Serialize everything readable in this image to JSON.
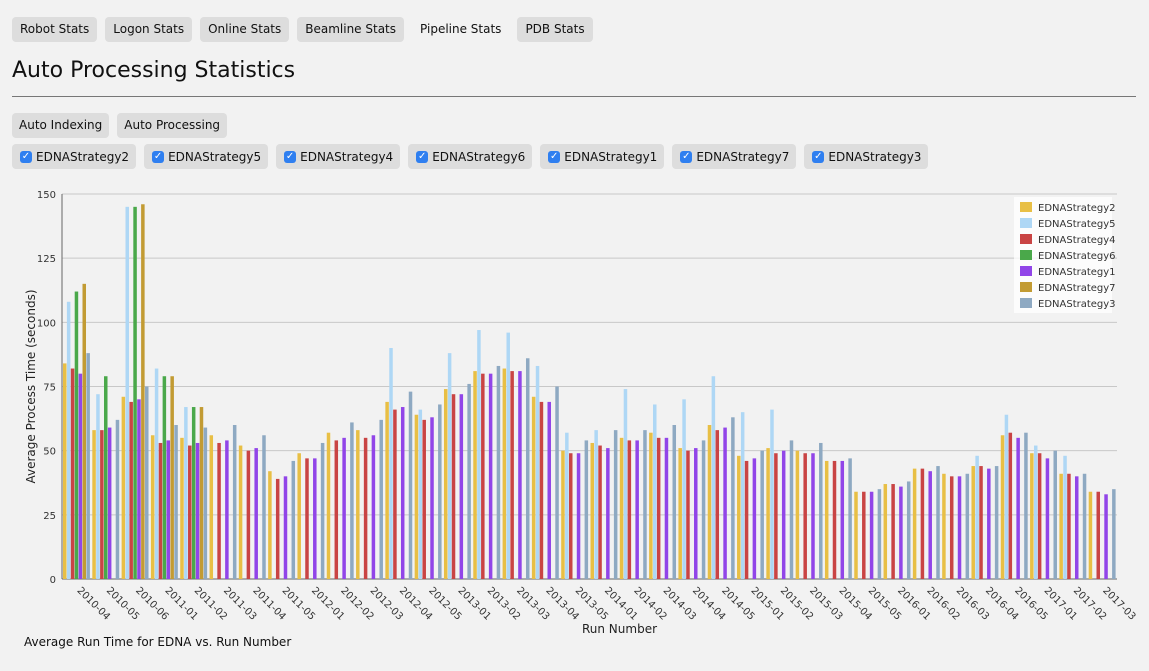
{
  "nav": {
    "tabs": [
      {
        "label": "Robot Stats",
        "active": false
      },
      {
        "label": "Logon Stats",
        "active": false
      },
      {
        "label": "Online Stats",
        "active": false
      },
      {
        "label": "Beamline Stats",
        "active": false
      },
      {
        "label": "Pipeline Stats",
        "active": true
      },
      {
        "label": "PDB Stats",
        "active": false
      }
    ]
  },
  "page_title": "Auto Processing Statistics",
  "subtabs": [
    "Auto Indexing",
    "Auto Processing"
  ],
  "series_toggles": [
    {
      "label": "EDNAStrategy2",
      "checked": true
    },
    {
      "label": "EDNAStrategy5",
      "checked": true
    },
    {
      "label": "EDNAStrategy4",
      "checked": true
    },
    {
      "label": "EDNAStrategy6",
      "checked": true
    },
    {
      "label": "EDNAStrategy1",
      "checked": true
    },
    {
      "label": "EDNAStrategy7",
      "checked": true
    },
    {
      "label": "EDNAStrategy3",
      "checked": true
    }
  ],
  "caption": "Average Run Time for EDNA vs. Run Number",
  "chart_data": {
    "type": "bar",
    "xlabel": "Run Number",
    "ylabel": "Average Process Time (seconds)",
    "ylim": [
      0,
      150
    ],
    "yticks": [
      0,
      25,
      50,
      75,
      100,
      125,
      150
    ],
    "grid": true,
    "legend_position": "top-right",
    "categories": [
      "2010-04",
      "2010-05",
      "2010-06",
      "2011-01",
      "2011-02",
      "2011-03",
      "2011-04",
      "2011-05",
      "2012-01",
      "2012-02",
      "2012-03",
      "2012-04",
      "2012-05",
      "2013-01",
      "2013-02",
      "2013-03",
      "2013-04",
      "2013-05",
      "2014-01",
      "2014-02",
      "2014-03",
      "2014-04",
      "2014-05",
      "2015-01",
      "2015-02",
      "2015-03",
      "2015-04",
      "2015-05",
      "2016-01",
      "2016-02",
      "2016-03",
      "2016-04",
      "2016-05",
      "2017-01",
      "2017-02",
      "2017-03"
    ],
    "series": [
      {
        "name": "EDNAStrategy2",
        "color": "#e8bf45",
        "values": [
          84,
          58,
          71,
          56,
          55,
          56,
          52,
          42,
          49,
          57,
          58,
          69,
          64,
          74,
          81,
          82,
          71,
          50,
          53,
          55,
          57,
          51,
          60,
          48,
          51,
          50,
          46,
          34,
          37,
          43,
          41,
          44,
          56,
          49,
          41,
          34
        ]
      },
      {
        "name": "EDNAStrategy5",
        "color": "#aed7f5",
        "values": [
          108,
          72,
          145,
          82,
          67,
          null,
          null,
          null,
          null,
          null,
          null,
          90,
          66,
          88,
          97,
          96,
          83,
          57,
          58,
          74,
          68,
          70,
          79,
          65,
          66,
          null,
          null,
          null,
          null,
          null,
          null,
          48,
          64,
          52,
          48,
          null
        ]
      },
      {
        "name": "EDNAStrategy4",
        "color": "#c94444",
        "values": [
          82,
          58,
          69,
          53,
          52,
          53,
          50,
          39,
          47,
          54,
          55,
          66,
          62,
          72,
          80,
          81,
          69,
          49,
          52,
          54,
          55,
          50,
          58,
          46,
          49,
          49,
          46,
          34,
          37,
          43,
          40,
          44,
          57,
          49,
          41,
          34
        ]
      },
      {
        "name": "EDNAStrategy6",
        "color": "#4aa84a",
        "values": [
          112,
          79,
          145,
          79,
          67,
          null,
          null,
          null,
          null,
          null,
          null,
          null,
          null,
          null,
          null,
          null,
          null,
          null,
          null,
          null,
          null,
          null,
          null,
          null,
          null,
          null,
          null,
          null,
          null,
          null,
          null,
          null,
          null,
          null,
          null,
          null
        ]
      },
      {
        "name": "EDNAStrategy1",
        "color": "#9145e8",
        "values": [
          80,
          59,
          70,
          54,
          53,
          54,
          51,
          40,
          47,
          55,
          56,
          67,
          63,
          72,
          80,
          81,
          69,
          49,
          51,
          54,
          55,
          51,
          59,
          47,
          50,
          49,
          46,
          34,
          36,
          42,
          40,
          43,
          55,
          47,
          40,
          33
        ]
      },
      {
        "name": "EDNAStrategy7",
        "color": "#c29b33",
        "values": [
          115,
          null,
          146,
          79,
          67,
          null,
          null,
          null,
          null,
          null,
          null,
          null,
          null,
          null,
          null,
          null,
          null,
          null,
          null,
          null,
          null,
          null,
          null,
          null,
          null,
          null,
          null,
          null,
          null,
          null,
          null,
          null,
          null,
          null,
          null,
          null
        ]
      },
      {
        "name": "EDNAStrategy3",
        "color": "#8ea9c2",
        "values": [
          88,
          62,
          75,
          60,
          59,
          60,
          56,
          46,
          53,
          61,
          62,
          73,
          68,
          76,
          83,
          86,
          75,
          54,
          58,
          58,
          60,
          54,
          63,
          50,
          54,
          53,
          47,
          35,
          38,
          44,
          41,
          44,
          57,
          50,
          41,
          35
        ]
      }
    ]
  }
}
